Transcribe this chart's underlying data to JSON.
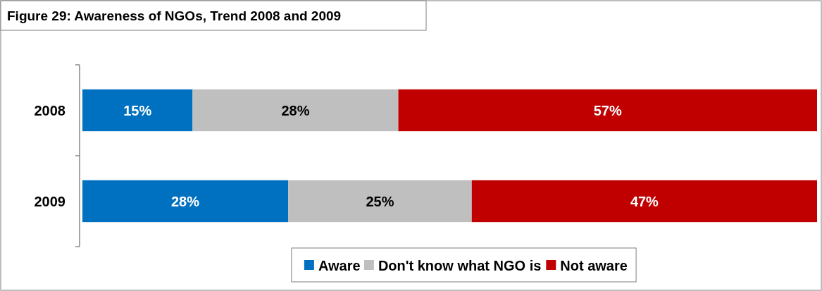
{
  "chart_data": {
    "type": "bar",
    "title": "Figure 29: Awareness of NGOs, Trend 2008 and 2009",
    "orientation": "horizontal",
    "stacked": true,
    "categories": [
      "2008",
      "2009"
    ],
    "series": [
      {
        "name": "Aware",
        "color": "#0070c0",
        "values": [
          15,
          28
        ],
        "value_labels": [
          "15%",
          "28%"
        ]
      },
      {
        "name": "Don't know what NGO is",
        "color": "#bfbfbf",
        "values": [
          28,
          25
        ],
        "value_labels": [
          "28%",
          "25%"
        ]
      },
      {
        "name": "Not aware",
        "color": "#c00000",
        "values": [
          57,
          47
        ],
        "value_labels": [
          "57%",
          "47%"
        ]
      }
    ],
    "xlim": [
      0,
      100
    ],
    "tick_labels": "y",
    "legend": "bottom"
  }
}
